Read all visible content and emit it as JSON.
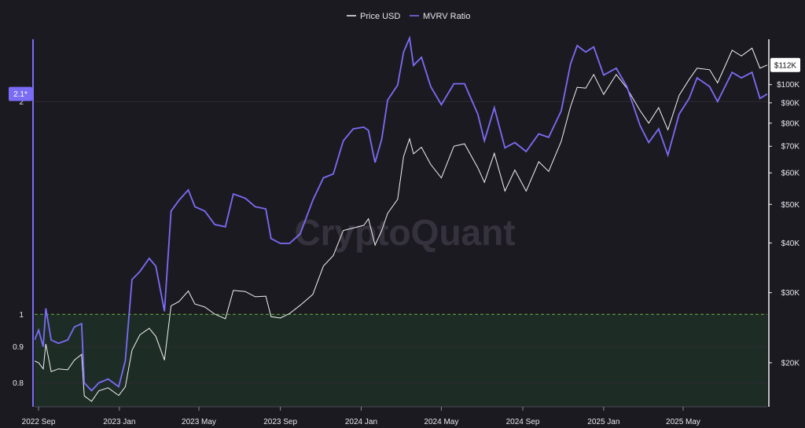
{
  "chart_data": {
    "type": "line",
    "watermark": "CryptoQuant",
    "legend": {
      "placement": "top-center",
      "items": [
        {
          "name": "Price USD",
          "color": "#f2f2f2"
        },
        {
          "name": "MVRV Ratio",
          "color": "#7b6cf6"
        }
      ]
    },
    "x_ticks": [
      "2022 Sep",
      "2023 Jan",
      "2023 May",
      "2023 Sep",
      "2024 Jan",
      "2024 May",
      "2024 Sep",
      "2025 Jan",
      "2025 May"
    ],
    "x_range": [
      "2022-08-26",
      "2025-09-05"
    ],
    "left_axis": {
      "scale": "log",
      "range": [
        0.74,
        2.45
      ],
      "ticks": [
        0.8,
        0.9,
        1,
        2
      ],
      "tick_labels": [
        "0.8",
        "0.9",
        "1",
        "2"
      ],
      "current_value_label": "2.1*",
      "reference_line": {
        "value": 1,
        "color": "#6fae3a",
        "style": "dashed"
      },
      "shaded_zone_below": 1
    },
    "right_axis": {
      "scale": "log",
      "range": [
        15500,
        130000
      ],
      "ticks": [
        20000,
        30000,
        40000,
        50000,
        60000,
        70000,
        80000,
        90000,
        100000
      ],
      "tick_labels": [
        "$20K",
        "$30K",
        "$40K",
        "$50K",
        "$60K",
        "$70K",
        "$80K",
        "$90K",
        "$100K"
      ],
      "current_value_label": "$112K"
    },
    "series": [
      {
        "name": "MVRV Ratio",
        "color": "#7b6cf6",
        "axis": "left",
        "points": [
          [
            "2022-08-26",
            0.92
          ],
          [
            "2022-09-01",
            0.95
          ],
          [
            "2022-09-08",
            0.9
          ],
          [
            "2022-09-12",
            1.02
          ],
          [
            "2022-09-20",
            0.92
          ],
          [
            "2022-10-01",
            0.91
          ],
          [
            "2022-10-15",
            0.92
          ],
          [
            "2022-10-25",
            0.96
          ],
          [
            "2022-11-05",
            0.97
          ],
          [
            "2022-11-09",
            0.8
          ],
          [
            "2022-11-20",
            0.78
          ],
          [
            "2022-12-01",
            0.8
          ],
          [
            "2022-12-15",
            0.81
          ],
          [
            "2022-12-31",
            0.79
          ],
          [
            "2023-01-10",
            0.86
          ],
          [
            "2023-01-20",
            1.12
          ],
          [
            "2023-02-01",
            1.15
          ],
          [
            "2023-02-15",
            1.2
          ],
          [
            "2023-02-25",
            1.17
          ],
          [
            "2023-03-10",
            1.01
          ],
          [
            "2023-03-20",
            1.4
          ],
          [
            "2023-04-01",
            1.45
          ],
          [
            "2023-04-15",
            1.5
          ],
          [
            "2023-04-25",
            1.42
          ],
          [
            "2023-05-10",
            1.4
          ],
          [
            "2023-05-25",
            1.34
          ],
          [
            "2023-06-10",
            1.33
          ],
          [
            "2023-06-22",
            1.48
          ],
          [
            "2023-07-10",
            1.46
          ],
          [
            "2023-07-25",
            1.42
          ],
          [
            "2023-08-10",
            1.41
          ],
          [
            "2023-08-18",
            1.28
          ],
          [
            "2023-09-01",
            1.26
          ],
          [
            "2023-09-15",
            1.26
          ],
          [
            "2023-10-01",
            1.3
          ],
          [
            "2023-10-20",
            1.45
          ],
          [
            "2023-11-05",
            1.56
          ],
          [
            "2023-11-20",
            1.58
          ],
          [
            "2023-12-05",
            1.76
          ],
          [
            "2023-12-20",
            1.83
          ],
          [
            "2024-01-05",
            1.84
          ],
          [
            "2024-01-12",
            1.82
          ],
          [
            "2024-01-22",
            1.64
          ],
          [
            "2024-02-01",
            1.77
          ],
          [
            "2024-02-10",
            2.01
          ],
          [
            "2024-02-25",
            2.11
          ],
          [
            "2024-03-05",
            2.35
          ],
          [
            "2024-03-14",
            2.46
          ],
          [
            "2024-03-20",
            2.25
          ],
          [
            "2024-04-01",
            2.31
          ],
          [
            "2024-04-15",
            2.1
          ],
          [
            "2024-05-01",
            1.98
          ],
          [
            "2024-05-20",
            2.12
          ],
          [
            "2024-06-05",
            2.12
          ],
          [
            "2024-06-25",
            1.92
          ],
          [
            "2024-07-05",
            1.76
          ],
          [
            "2024-07-20",
            1.96
          ],
          [
            "2024-08-05",
            1.72
          ],
          [
            "2024-08-20",
            1.75
          ],
          [
            "2024-09-06",
            1.7
          ],
          [
            "2024-09-25",
            1.8
          ],
          [
            "2024-10-10",
            1.78
          ],
          [
            "2024-10-29",
            1.94
          ],
          [
            "2024-11-12",
            2.26
          ],
          [
            "2024-11-22",
            2.4
          ],
          [
            "2024-12-05",
            2.35
          ],
          [
            "2024-12-17",
            2.39
          ],
          [
            "2025-01-01",
            2.18
          ],
          [
            "2025-01-20",
            2.23
          ],
          [
            "2025-02-05",
            2.1
          ],
          [
            "2025-02-25",
            1.85
          ],
          [
            "2025-03-10",
            1.75
          ],
          [
            "2025-03-25",
            1.83
          ],
          [
            "2025-04-08",
            1.68
          ],
          [
            "2025-04-25",
            1.92
          ],
          [
            "2025-05-10",
            2.02
          ],
          [
            "2025-05-22",
            2.16
          ],
          [
            "2025-06-10",
            2.1
          ],
          [
            "2025-06-22",
            2.0
          ],
          [
            "2025-07-14",
            2.2
          ],
          [
            "2025-07-28",
            2.16
          ],
          [
            "2025-08-13",
            2.2
          ],
          [
            "2025-08-25",
            2.02
          ],
          [
            "2025-09-05",
            2.05
          ]
        ]
      },
      {
        "name": "Price USD",
        "color": "#f2f2f2",
        "axis": "right",
        "points": [
          [
            "2022-08-26",
            20200
          ],
          [
            "2022-09-01",
            20000
          ],
          [
            "2022-09-08",
            19300
          ],
          [
            "2022-09-12",
            22300
          ],
          [
            "2022-09-20",
            19000
          ],
          [
            "2022-10-01",
            19300
          ],
          [
            "2022-10-15",
            19200
          ],
          [
            "2022-10-25",
            20300
          ],
          [
            "2022-11-05",
            21000
          ],
          [
            "2022-11-09",
            16500
          ],
          [
            "2022-11-20",
            16000
          ],
          [
            "2022-12-01",
            17000
          ],
          [
            "2022-12-15",
            17300
          ],
          [
            "2022-12-31",
            16550
          ],
          [
            "2023-01-10",
            17400
          ],
          [
            "2023-01-20",
            21500
          ],
          [
            "2023-02-01",
            23500
          ],
          [
            "2023-02-15",
            24400
          ],
          [
            "2023-02-25",
            23300
          ],
          [
            "2023-03-10",
            20300
          ],
          [
            "2023-03-20",
            27800
          ],
          [
            "2023-04-01",
            28500
          ],
          [
            "2023-04-15",
            30300
          ],
          [
            "2023-04-25",
            28100
          ],
          [
            "2023-05-10",
            27600
          ],
          [
            "2023-05-25",
            26500
          ],
          [
            "2023-06-10",
            25800
          ],
          [
            "2023-06-22",
            30400
          ],
          [
            "2023-07-10",
            30200
          ],
          [
            "2023-07-25",
            29300
          ],
          [
            "2023-08-10",
            29400
          ],
          [
            "2023-08-18",
            26100
          ],
          [
            "2023-09-01",
            25900
          ],
          [
            "2023-09-15",
            26600
          ],
          [
            "2023-10-01",
            27900
          ],
          [
            "2023-10-20",
            29700
          ],
          [
            "2023-11-05",
            35000
          ],
          [
            "2023-11-20",
            37200
          ],
          [
            "2023-12-05",
            43000
          ],
          [
            "2023-12-20",
            43600
          ],
          [
            "2024-01-05",
            44300
          ],
          [
            "2024-01-12",
            46000
          ],
          [
            "2024-01-22",
            39500
          ],
          [
            "2024-02-01",
            43000
          ],
          [
            "2024-02-10",
            47500
          ],
          [
            "2024-02-25",
            51500
          ],
          [
            "2024-03-05",
            66000
          ],
          [
            "2024-03-14",
            73100
          ],
          [
            "2024-03-20",
            67000
          ],
          [
            "2024-04-01",
            69600
          ],
          [
            "2024-04-15",
            63000
          ],
          [
            "2024-05-01",
            58300
          ],
          [
            "2024-05-20",
            70000
          ],
          [
            "2024-06-05",
            71000
          ],
          [
            "2024-06-25",
            61800
          ],
          [
            "2024-07-05",
            56800
          ],
          [
            "2024-07-20",
            67200
          ],
          [
            "2024-08-05",
            54000
          ],
          [
            "2024-08-20",
            61000
          ],
          [
            "2024-09-06",
            54000
          ],
          [
            "2024-09-25",
            64000
          ],
          [
            "2024-10-10",
            60500
          ],
          [
            "2024-10-29",
            72000
          ],
          [
            "2024-11-12",
            88000
          ],
          [
            "2024-11-22",
            98500
          ],
          [
            "2024-12-05",
            98000
          ],
          [
            "2024-12-17",
            106000
          ],
          [
            "2025-01-01",
            94500
          ],
          [
            "2025-01-20",
            106000
          ],
          [
            "2025-02-05",
            98000
          ],
          [
            "2025-02-25",
            86000
          ],
          [
            "2025-03-10",
            80000
          ],
          [
            "2025-03-25",
            87500
          ],
          [
            "2025-04-08",
            77000
          ],
          [
            "2025-04-25",
            94000
          ],
          [
            "2025-05-10",
            103000
          ],
          [
            "2025-05-22",
            110000
          ],
          [
            "2025-06-10",
            109000
          ],
          [
            "2025-06-22",
            101000
          ],
          [
            "2025-07-14",
            122000
          ],
          [
            "2025-07-28",
            118000
          ],
          [
            "2025-08-13",
            123500
          ],
          [
            "2025-08-25",
            110000
          ],
          [
            "2025-09-05",
            112000
          ]
        ]
      }
    ]
  }
}
